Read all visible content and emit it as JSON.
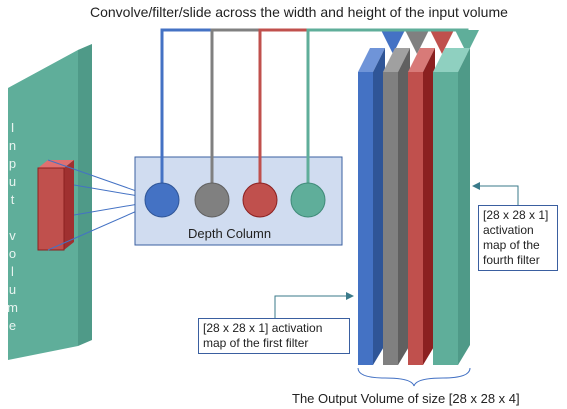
{
  "title": "Convolve/filter/slide across the width and height of the input volume",
  "input_label": "Input volume",
  "depth_column": "Depth Column",
  "fourth_filter_note": "[28 x 28 x 1] activation map of the fourth filter",
  "first_filter_note": "[28 x 28 x 1] activation map of the first filter",
  "output_label": "The Output Volume of size [28 x 28 x 4]"
}
